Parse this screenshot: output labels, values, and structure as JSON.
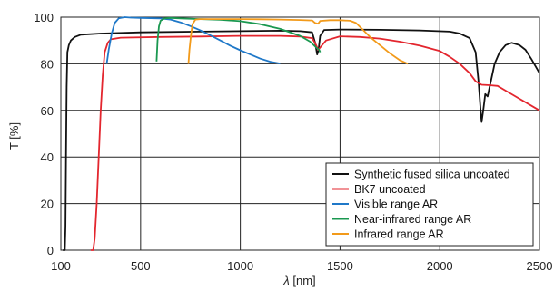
{
  "chart_data": {
    "type": "line",
    "xlabel_italic": "λ",
    "xlabel_unit": " [nm]",
    "ylabel": "T [%]",
    "xlim": [
      100,
      2500
    ],
    "ylim": [
      0,
      100
    ],
    "xticks": [
      100,
      500,
      1000,
      1500,
      2000,
      2500
    ],
    "yticks": [
      0,
      20,
      40,
      60,
      80,
      100
    ],
    "grid": true,
    "legend_position": "bottom-right",
    "series": [
      {
        "name": "Synthetic fused silica uncoated",
        "color": "#111111",
        "points": [
          [
            110,
            0
          ],
          [
            115,
            0
          ],
          [
            120,
            0
          ],
          [
            123,
            10
          ],
          [
            126,
            40
          ],
          [
            129,
            70
          ],
          [
            133,
            85
          ],
          [
            140,
            88
          ],
          [
            150,
            90
          ],
          [
            170,
            91.5
          ],
          [
            200,
            92.5
          ],
          [
            300,
            93
          ],
          [
            500,
            93.5
          ],
          [
            800,
            93.8
          ],
          [
            1000,
            94
          ],
          [
            1200,
            94.2
          ],
          [
            1300,
            94
          ],
          [
            1360,
            93.5
          ],
          [
            1375,
            89
          ],
          [
            1385,
            84
          ],
          [
            1392,
            86
          ],
          [
            1400,
            92
          ],
          [
            1420,
            94.5
          ],
          [
            1500,
            94.7
          ],
          [
            1700,
            94.6
          ],
          [
            1900,
            94.3
          ],
          [
            2050,
            93.8
          ],
          [
            2100,
            93
          ],
          [
            2150,
            91
          ],
          [
            2180,
            85
          ],
          [
            2195,
            72
          ],
          [
            2205,
            60
          ],
          [
            2210,
            55
          ],
          [
            2218,
            60
          ],
          [
            2228,
            67
          ],
          [
            2240,
            66
          ],
          [
            2255,
            72
          ],
          [
            2275,
            80
          ],
          [
            2300,
            85
          ],
          [
            2330,
            88
          ],
          [
            2360,
            89
          ],
          [
            2400,
            88
          ],
          [
            2430,
            86
          ],
          [
            2460,
            82
          ],
          [
            2500,
            76
          ]
        ]
      },
      {
        "name": "BK7 uncoated",
        "color": "#e3262e",
        "points": [
          [
            250,
            0
          ],
          [
            262,
            0
          ],
          [
            270,
            5
          ],
          [
            280,
            20
          ],
          [
            290,
            40
          ],
          [
            300,
            60
          ],
          [
            310,
            75
          ],
          [
            320,
            85
          ],
          [
            335,
            89
          ],
          [
            350,
            90.5
          ],
          [
            400,
            91.2
          ],
          [
            600,
            91.5
          ],
          [
            800,
            91.7
          ],
          [
            1000,
            92
          ],
          [
            1200,
            92
          ],
          [
            1300,
            91.7
          ],
          [
            1360,
            91
          ],
          [
            1380,
            88
          ],
          [
            1390,
            86
          ],
          [
            1400,
            87
          ],
          [
            1430,
            90
          ],
          [
            1500,
            91.8
          ],
          [
            1600,
            91.5
          ],
          [
            1700,
            90.8
          ],
          [
            1800,
            89.5
          ],
          [
            1900,
            87.8
          ],
          [
            2000,
            85.5
          ],
          [
            2050,
            83
          ],
          [
            2100,
            80
          ],
          [
            2150,
            76
          ],
          [
            2180,
            72.5
          ],
          [
            2210,
            71
          ],
          [
            2250,
            70.8
          ],
          [
            2290,
            70.5
          ],
          [
            2330,
            68.5
          ],
          [
            2380,
            66
          ],
          [
            2430,
            63.5
          ],
          [
            2500,
            60
          ]
        ]
      },
      {
        "name": "Visible range AR",
        "color": "#1f78c8",
        "points": [
          [
            330,
            80
          ],
          [
            340,
            86
          ],
          [
            355,
            93
          ],
          [
            370,
            97.5
          ],
          [
            390,
            99.5
          ],
          [
            420,
            100
          ],
          [
            450,
            99.8
          ],
          [
            500,
            99.7
          ],
          [
            600,
            99.5
          ],
          [
            650,
            99
          ],
          [
            700,
            97.8
          ],
          [
            750,
            96.2
          ],
          [
            800,
            94.3
          ],
          [
            850,
            92.2
          ],
          [
            900,
            90
          ],
          [
            950,
            87.8
          ],
          [
            1000,
            85.8
          ],
          [
            1050,
            84
          ],
          [
            1100,
            82.2
          ],
          [
            1150,
            80.9
          ],
          [
            1200,
            80.1
          ]
        ]
      },
      {
        "name": "Near-infrared range AR",
        "color": "#1a9850",
        "points": [
          [
            580,
            81
          ],
          [
            585,
            90
          ],
          [
            592,
            96
          ],
          [
            600,
            98.5
          ],
          [
            620,
            99.5
          ],
          [
            650,
            99.7
          ],
          [
            700,
            99.5
          ],
          [
            800,
            99.2
          ],
          [
            900,
            98.9
          ],
          [
            1000,
            98.3
          ],
          [
            1100,
            97
          ],
          [
            1200,
            95
          ],
          [
            1300,
            92
          ],
          [
            1350,
            89.5
          ],
          [
            1380,
            87
          ],
          [
            1395,
            86
          ],
          [
            1400,
            85
          ]
        ]
      },
      {
        "name": "Infrared range AR",
        "color": "#f29a1a",
        "points": [
          [
            740,
            80
          ],
          [
            745,
            86
          ],
          [
            752,
            92
          ],
          [
            760,
            97
          ],
          [
            775,
            99
          ],
          [
            800,
            99.2
          ],
          [
            900,
            99.2
          ],
          [
            1000,
            99.2
          ],
          [
            1100,
            99.1
          ],
          [
            1200,
            99
          ],
          [
            1300,
            98.8
          ],
          [
            1360,
            98.6
          ],
          [
            1375,
            97.5
          ],
          [
            1390,
            97.2
          ],
          [
            1400,
            98.4
          ],
          [
            1450,
            98.7
          ],
          [
            1500,
            98.7
          ],
          [
            1550,
            98.5
          ],
          [
            1580,
            97.5
          ],
          [
            1610,
            95
          ],
          [
            1650,
            91.5
          ],
          [
            1700,
            88
          ],
          [
            1750,
            84.5
          ],
          [
            1800,
            81.5
          ],
          [
            1840,
            80
          ]
        ]
      }
    ]
  }
}
